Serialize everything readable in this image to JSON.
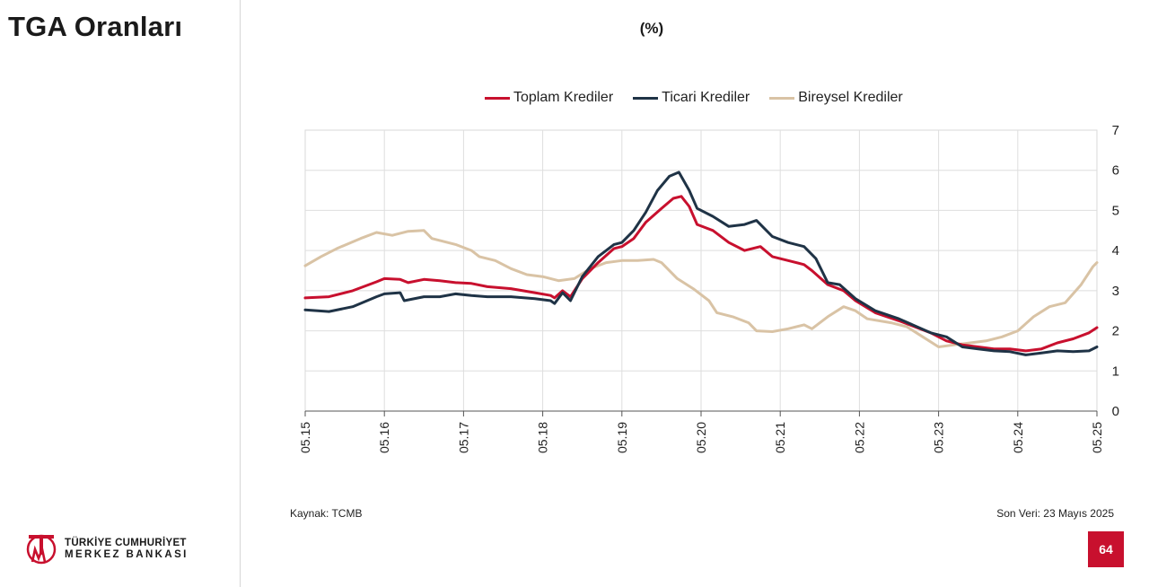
{
  "slide": {
    "title": "TGA Oranları",
    "page_number": "64",
    "source": "Kaynak: TCMB",
    "last_data": "Son Veri: 23 Mayıs 2025",
    "logo": {
      "line1": "TÜRKİYE CUMHURİYET",
      "line2": "MERKEZ BANKASI",
      "mark": "TCMB"
    }
  },
  "colors": {
    "total": "#c8102e",
    "commercial": "#1f3346",
    "retail": "#d9c3a5",
    "accent": "#c8102e"
  },
  "chart_data": {
    "type": "line",
    "title": "(%)",
    "ylim": [
      0,
      7
    ],
    "yticks": [
      0,
      1,
      2,
      3,
      4,
      5,
      6,
      7
    ],
    "y_axis_side": "right",
    "grid": true,
    "legend_position": "top",
    "xticks": [
      "05.15",
      "05.16",
      "05.17",
      "05.18",
      "05.19",
      "05.20",
      "05.21",
      "05.22",
      "05.23",
      "05.24",
      "05.25"
    ],
    "x_range": [
      2015.0,
      2025.0
    ],
    "series": [
      {
        "name": "Toplam Krediler",
        "color": "#c8102e",
        "points": [
          [
            2015.0,
            2.82
          ],
          [
            2015.3,
            2.85
          ],
          [
            2015.6,
            3.0
          ],
          [
            2015.9,
            3.22
          ],
          [
            2016.0,
            3.3
          ],
          [
            2016.2,
            3.28
          ],
          [
            2016.3,
            3.2
          ],
          [
            2016.5,
            3.28
          ],
          [
            2016.7,
            3.25
          ],
          [
            2016.9,
            3.2
          ],
          [
            2017.1,
            3.18
          ],
          [
            2017.3,
            3.1
          ],
          [
            2017.6,
            3.05
          ],
          [
            2017.9,
            2.95
          ],
          [
            2018.1,
            2.88
          ],
          [
            2018.15,
            2.82
          ],
          [
            2018.25,
            3.0
          ],
          [
            2018.35,
            2.85
          ],
          [
            2018.5,
            3.3
          ],
          [
            2018.7,
            3.7
          ],
          [
            2018.9,
            4.05
          ],
          [
            2019.0,
            4.1
          ],
          [
            2019.15,
            4.3
          ],
          [
            2019.3,
            4.7
          ],
          [
            2019.5,
            5.05
          ],
          [
            2019.65,
            5.3
          ],
          [
            2019.75,
            5.35
          ],
          [
            2019.85,
            5.1
          ],
          [
            2019.95,
            4.65
          ],
          [
            2020.15,
            4.5
          ],
          [
            2020.35,
            4.2
          ],
          [
            2020.55,
            4.0
          ],
          [
            2020.75,
            4.1
          ],
          [
            2020.9,
            3.85
          ],
          [
            2021.1,
            3.75
          ],
          [
            2021.3,
            3.65
          ],
          [
            2021.4,
            3.5
          ],
          [
            2021.6,
            3.15
          ],
          [
            2021.8,
            3.0
          ],
          [
            2021.95,
            2.75
          ],
          [
            2022.2,
            2.45
          ],
          [
            2022.5,
            2.25
          ],
          [
            2022.9,
            1.95
          ],
          [
            2023.1,
            1.75
          ],
          [
            2023.3,
            1.65
          ],
          [
            2023.5,
            1.6
          ],
          [
            2023.7,
            1.55
          ],
          [
            2023.9,
            1.55
          ],
          [
            2024.1,
            1.5
          ],
          [
            2024.3,
            1.55
          ],
          [
            2024.5,
            1.7
          ],
          [
            2024.7,
            1.8
          ],
          [
            2024.9,
            1.95
          ],
          [
            2025.0,
            2.08
          ]
        ]
      },
      {
        "name": "Ticari Krediler",
        "color": "#1f3346",
        "points": [
          [
            2015.0,
            2.52
          ],
          [
            2015.3,
            2.48
          ],
          [
            2015.6,
            2.6
          ],
          [
            2015.9,
            2.85
          ],
          [
            2016.0,
            2.92
          ],
          [
            2016.2,
            2.95
          ],
          [
            2016.25,
            2.75
          ],
          [
            2016.5,
            2.85
          ],
          [
            2016.7,
            2.85
          ],
          [
            2016.9,
            2.92
          ],
          [
            2017.1,
            2.88
          ],
          [
            2017.3,
            2.85
          ],
          [
            2017.6,
            2.85
          ],
          [
            2017.9,
            2.8
          ],
          [
            2018.1,
            2.75
          ],
          [
            2018.15,
            2.68
          ],
          [
            2018.25,
            2.95
          ],
          [
            2018.35,
            2.75
          ],
          [
            2018.5,
            3.35
          ],
          [
            2018.7,
            3.85
          ],
          [
            2018.9,
            4.15
          ],
          [
            2019.0,
            4.2
          ],
          [
            2019.15,
            4.5
          ],
          [
            2019.3,
            4.95
          ],
          [
            2019.45,
            5.5
          ],
          [
            2019.6,
            5.85
          ],
          [
            2019.72,
            5.95
          ],
          [
            2019.85,
            5.5
          ],
          [
            2019.95,
            5.05
          ],
          [
            2020.15,
            4.85
          ],
          [
            2020.35,
            4.6
          ],
          [
            2020.55,
            4.65
          ],
          [
            2020.7,
            4.75
          ],
          [
            2020.9,
            4.35
          ],
          [
            2021.1,
            4.2
          ],
          [
            2021.3,
            4.1
          ],
          [
            2021.45,
            3.8
          ],
          [
            2021.6,
            3.2
          ],
          [
            2021.75,
            3.15
          ],
          [
            2021.95,
            2.8
          ],
          [
            2022.2,
            2.5
          ],
          [
            2022.5,
            2.3
          ],
          [
            2022.9,
            1.95
          ],
          [
            2023.1,
            1.85
          ],
          [
            2023.3,
            1.6
          ],
          [
            2023.5,
            1.55
          ],
          [
            2023.7,
            1.5
          ],
          [
            2023.9,
            1.48
          ],
          [
            2024.1,
            1.4
          ],
          [
            2024.3,
            1.45
          ],
          [
            2024.5,
            1.5
          ],
          [
            2024.7,
            1.48
          ],
          [
            2024.9,
            1.5
          ],
          [
            2025.0,
            1.6
          ]
        ]
      },
      {
        "name": "Bireysel Krediler",
        "color": "#d9c3a5",
        "points": [
          [
            2015.0,
            3.62
          ],
          [
            2015.2,
            3.85
          ],
          [
            2015.4,
            4.05
          ],
          [
            2015.7,
            4.3
          ],
          [
            2015.9,
            4.45
          ],
          [
            2016.1,
            4.38
          ],
          [
            2016.3,
            4.48
          ],
          [
            2016.5,
            4.5
          ],
          [
            2016.6,
            4.3
          ],
          [
            2016.9,
            4.15
          ],
          [
            2017.1,
            4.0
          ],
          [
            2017.2,
            3.85
          ],
          [
            2017.4,
            3.75
          ],
          [
            2017.6,
            3.55
          ],
          [
            2017.8,
            3.4
          ],
          [
            2018.0,
            3.35
          ],
          [
            2018.2,
            3.25
          ],
          [
            2018.4,
            3.3
          ],
          [
            2018.6,
            3.55
          ],
          [
            2018.8,
            3.7
          ],
          [
            2019.0,
            3.75
          ],
          [
            2019.2,
            3.75
          ],
          [
            2019.4,
            3.78
          ],
          [
            2019.5,
            3.7
          ],
          [
            2019.7,
            3.3
          ],
          [
            2019.9,
            3.05
          ],
          [
            2020.1,
            2.75
          ],
          [
            2020.2,
            2.45
          ],
          [
            2020.4,
            2.35
          ],
          [
            2020.6,
            2.2
          ],
          [
            2020.7,
            2.0
          ],
          [
            2020.9,
            1.98
          ],
          [
            2021.1,
            2.05
          ],
          [
            2021.3,
            2.15
          ],
          [
            2021.4,
            2.05
          ],
          [
            2021.6,
            2.35
          ],
          [
            2021.8,
            2.6
          ],
          [
            2021.95,
            2.5
          ],
          [
            2022.1,
            2.3
          ],
          [
            2022.4,
            2.2
          ],
          [
            2022.6,
            2.1
          ],
          [
            2022.8,
            1.85
          ],
          [
            2023.0,
            1.6
          ],
          [
            2023.2,
            1.65
          ],
          [
            2023.4,
            1.7
          ],
          [
            2023.6,
            1.75
          ],
          [
            2023.8,
            1.85
          ],
          [
            2024.0,
            2.0
          ],
          [
            2024.2,
            2.35
          ],
          [
            2024.4,
            2.6
          ],
          [
            2024.6,
            2.7
          ],
          [
            2024.8,
            3.15
          ],
          [
            2024.95,
            3.6
          ],
          [
            2025.0,
            3.7
          ]
        ]
      }
    ]
  }
}
